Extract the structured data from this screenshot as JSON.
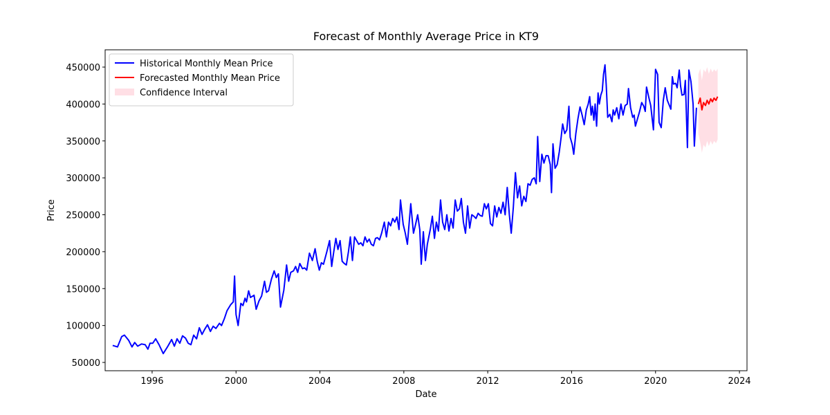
{
  "chart_data": {
    "type": "line",
    "title": "Forecast of Monthly Average Price in KT9",
    "x_label": "Date",
    "y_label": "Price",
    "xlim": [
      1993.76,
      2024.36
    ],
    "ylim": [
      38760,
      473420
    ],
    "xticks": [
      1996,
      2000,
      2004,
      2008,
      2012,
      2016,
      2020,
      2024
    ],
    "yticks": [
      50000,
      100000,
      150000,
      200000,
      250000,
      300000,
      350000,
      400000,
      450000
    ],
    "grid": false,
    "legend": "upper left",
    "series": [
      {
        "name": "Historical Monthly Mean Price",
        "color": "#0000ff",
        "x": [
          1994.12,
          1994.35,
          1994.55,
          1994.68,
          1994.88,
          1995.04,
          1995.17,
          1995.31,
          1995.5,
          1995.67,
          1995.8,
          1995.9,
          1996.03,
          1996.17,
          1996.33,
          1996.53,
          1996.73,
          1996.93,
          1997.06,
          1997.19,
          1997.32,
          1997.45,
          1997.59,
          1997.72,
          1997.85,
          1997.98,
          1998.12,
          1998.25,
          1998.38,
          1998.51,
          1998.64,
          1998.78,
          1998.91,
          1999.04,
          1999.21,
          1999.31,
          1999.44,
          1999.57,
          1999.74,
          1999.87,
          1999.93,
          2000.0,
          2000.1,
          2000.23,
          2000.33,
          2000.43,
          2000.5,
          2000.6,
          2000.69,
          2000.86,
          2000.96,
          2001.09,
          2001.22,
          2001.36,
          2001.45,
          2001.55,
          2001.69,
          2001.82,
          2001.92,
          2002.02,
          2002.12,
          2002.28,
          2002.41,
          2002.51,
          2002.61,
          2002.74,
          2002.84,
          2002.94,
          2003.04,
          2003.17,
          2003.27,
          2003.37,
          2003.5,
          2003.64,
          2003.77,
          2003.87,
          2003.97,
          2004.07,
          2004.17,
          2004.33,
          2004.46,
          2004.56,
          2004.66,
          2004.76,
          2004.86,
          2004.96,
          2005.06,
          2005.16,
          2005.26,
          2005.36,
          2005.45,
          2005.55,
          2005.65,
          2005.75,
          2005.85,
          2005.95,
          2006.05,
          2006.15,
          2006.25,
          2006.35,
          2006.45,
          2006.55,
          2006.65,
          2006.74,
          2006.84,
          2006.94,
          2007.07,
          2007.17,
          2007.27,
          2007.37,
          2007.47,
          2007.57,
          2007.67,
          2007.77,
          2007.84,
          2007.97,
          2008.07,
          2008.17,
          2008.33,
          2008.46,
          2008.56,
          2008.66,
          2008.76,
          2008.83,
          2008.93,
          2009.03,
          2009.12,
          2009.26,
          2009.36,
          2009.46,
          2009.55,
          2009.65,
          2009.75,
          2009.85,
          2009.95,
          2010.05,
          2010.15,
          2010.25,
          2010.35,
          2010.45,
          2010.55,
          2010.65,
          2010.74,
          2010.84,
          2010.94,
          2011.04,
          2011.14,
          2011.24,
          2011.34,
          2011.44,
          2011.54,
          2011.64,
          2011.74,
          2011.84,
          2011.93,
          2012.03,
          2012.13,
          2012.23,
          2012.33,
          2012.43,
          2012.53,
          2012.63,
          2012.73,
          2012.83,
          2012.93,
          2013.03,
          2013.12,
          2013.22,
          2013.32,
          2013.42,
          2013.52,
          2013.62,
          2013.72,
          2013.82,
          2013.92,
          2014.02,
          2014.12,
          2014.22,
          2014.31,
          2014.38,
          2014.48,
          2014.58,
          2014.68,
          2014.78,
          2014.88,
          2014.98,
          2015.04,
          2015.11,
          2015.21,
          2015.31,
          2015.41,
          2015.5,
          2015.57,
          2015.67,
          2015.77,
          2015.87,
          2015.93,
          2016.03,
          2016.1,
          2016.2,
          2016.3,
          2016.4,
          2016.5,
          2016.6,
          2016.7,
          2016.79,
          2016.86,
          2016.93,
          2016.99,
          2017.06,
          2017.12,
          2017.19,
          2017.26,
          2017.32,
          2017.39,
          2017.46,
          2017.52,
          2017.59,
          2017.65,
          2017.72,
          2017.82,
          2017.92,
          2017.98,
          2018.05,
          2018.15,
          2018.25,
          2018.35,
          2018.45,
          2018.55,
          2018.65,
          2018.71,
          2018.81,
          2018.91,
          2018.98,
          2019.04,
          2019.14,
          2019.24,
          2019.34,
          2019.44,
          2019.51,
          2019.57,
          2019.67,
          2019.77,
          2019.84,
          2019.9,
          2020.0,
          2020.1,
          2020.17,
          2020.27,
          2020.37,
          2020.46,
          2020.56,
          2020.66,
          2020.73,
          2020.8,
          2020.86,
          2020.96,
          2021.03,
          2021.13,
          2021.19,
          2021.26,
          2021.36,
          2021.42,
          2021.52,
          2021.59,
          2021.69,
          2021.79,
          2021.85,
          2021.95
        ],
        "values": [
          73000,
          71000,
          85000,
          87000,
          80000,
          71000,
          77000,
          72000,
          75000,
          74000,
          68000,
          76000,
          76000,
          82000,
          74000,
          62000,
          71000,
          81000,
          72000,
          82000,
          76000,
          86000,
          83000,
          76000,
          74000,
          87000,
          82000,
          97000,
          88000,
          95000,
          101000,
          92000,
          99000,
          96000,
          103000,
          100000,
          109000,
          120000,
          128000,
          132000,
          167000,
          115000,
          100000,
          130000,
          127000,
          137000,
          132000,
          147000,
          138000,
          141000,
          122000,
          133000,
          140000,
          160000,
          145000,
          147000,
          163000,
          174000,
          165000,
          170000,
          125000,
          148000,
          182000,
          160000,
          172000,
          174000,
          180000,
          172000,
          184000,
          177000,
          178000,
          175000,
          198000,
          188000,
          204000,
          187000,
          175000,
          185000,
          183000,
          200000,
          215000,
          180000,
          200000,
          218000,
          203000,
          215000,
          187000,
          184000,
          182000,
          200000,
          220000,
          188000,
          220000,
          215000,
          210000,
          212000,
          208000,
          220000,
          213000,
          217000,
          210000,
          208000,
          218000,
          219000,
          216000,
          225000,
          240000,
          220000,
          240000,
          235000,
          245000,
          240000,
          247000,
          230000,
          270000,
          237000,
          225000,
          210000,
          265000,
          225000,
          237000,
          250000,
          230000,
          183000,
          227000,
          188000,
          210000,
          230000,
          248000,
          218000,
          240000,
          228000,
          270000,
          240000,
          230000,
          250000,
          228000,
          245000,
          232000,
          270000,
          255000,
          258000,
          272000,
          240000,
          225000,
          262000,
          232000,
          250000,
          248000,
          245000,
          252000,
          249000,
          248000,
          265000,
          258000,
          265000,
          238000,
          235000,
          262000,
          247000,
          260000,
          252000,
          267000,
          250000,
          287000,
          250000,
          225000,
          260000,
          307000,
          273000,
          289000,
          262000,
          275000,
          268000,
          292000,
          290000,
          298000,
          300000,
          292000,
          356000,
          295000,
          332000,
          320000,
          330000,
          330000,
          318000,
          280000,
          346000,
          313000,
          318000,
          335000,
          355000,
          373000,
          360000,
          365000,
          397000,
          355000,
          345000,
          332000,
          360000,
          380000,
          396000,
          385000,
          372000,
          392000,
          400000,
          410000,
          385000,
          397000,
          378000,
          400000,
          370000,
          415000,
          400000,
          412000,
          418000,
          440000,
          453000,
          425000,
          382000,
          386000,
          376000,
          392000,
          385000,
          395000,
          380000,
          400000,
          385000,
          398000,
          400000,
          421000,
          395000,
          382000,
          385000,
          370000,
          380000,
          390000,
          402000,
          397000,
          390000,
          423000,
          410000,
          398000,
          380000,
          365000,
          447000,
          440000,
          375000,
          368000,
          405000,
          422000,
          405000,
          398000,
          393000,
          437000,
          427000,
          428000,
          422000,
          446000,
          425000,
          412000,
          413000,
          432000,
          341000,
          446000,
          430000,
          400000,
          343000,
          395000
        ]
      },
      {
        "name": "Forecasted Monthly Mean Price",
        "color": "#ff0000",
        "x": [
          2022.04,
          2022.13,
          2022.21,
          2022.29,
          2022.38,
          2022.46,
          2022.54,
          2022.63,
          2022.71,
          2022.79,
          2022.88,
          2022.96
        ],
        "values": [
          400000,
          408000,
          392000,
          402000,
          398000,
          405000,
          400000,
          407000,
          403000,
          408000,
          405000,
          410000
        ]
      }
    ],
    "confidence_interval": {
      "name": "Confidence Interval",
      "color": "#ffc0cb",
      "lower": [
        360000,
        348000,
        334000,
        345000,
        341000,
        350000,
        343000,
        350000,
        345000,
        350000,
        347000,
        352000
      ],
      "upper": [
        440000,
        448000,
        432000,
        447000,
        443000,
        450000,
        441000,
        448000,
        443000,
        447000,
        444000,
        448000
      ]
    }
  }
}
